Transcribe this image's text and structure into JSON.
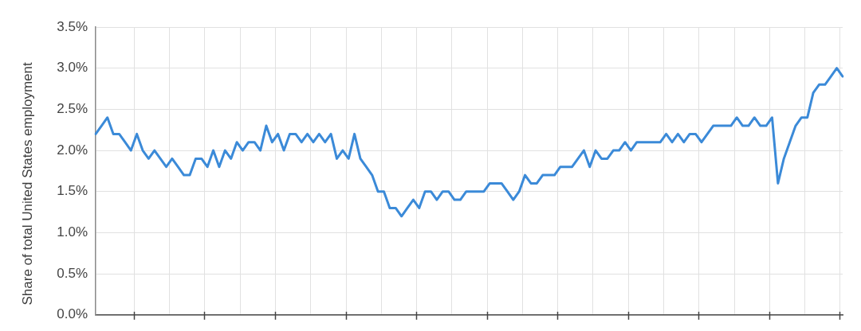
{
  "chart_data": {
    "type": "line",
    "ylabel": "Share of total United States employment",
    "categories": [
      null,
      null,
      null,
      null,
      null,
      null,
      null,
      null,
      null,
      null,
      null,
      null,
      null,
      null,
      null,
      null,
      null,
      null,
      null,
      null,
      null,
      null,
      null,
      null,
      null,
      null,
      null,
      null,
      null,
      null,
      null,
      null,
      null,
      null,
      null,
      null,
      null,
      null,
      null,
      null,
      null,
      null,
      null,
      null,
      null,
      null,
      null,
      null,
      null,
      null,
      null,
      null,
      null,
      null,
      null,
      null,
      null,
      null,
      null,
      null,
      null,
      null,
      null,
      null,
      null,
      null,
      null,
      null,
      null,
      null,
      null,
      null,
      null,
      null,
      null,
      null,
      null,
      null,
      null,
      null,
      null,
      null,
      null,
      null,
      null,
      null,
      null,
      null,
      null,
      null,
      null,
      null,
      null,
      null,
      null,
      null,
      null,
      null,
      null,
      null,
      null,
      null,
      null,
      null,
      null,
      null,
      null,
      null,
      null,
      null,
      null,
      null,
      null,
      null,
      null,
      null,
      null,
      null,
      null,
      null,
      null,
      null,
      null,
      null,
      null,
      null,
      null,
      null
    ],
    "values": [
      2.2,
      2.3,
      2.4,
      2.2,
      2.2,
      2.1,
      2.0,
      2.2,
      2.0,
      1.9,
      2.0,
      1.9,
      1.8,
      1.9,
      1.8,
      1.7,
      1.7,
      1.9,
      1.9,
      1.8,
      2.0,
      1.8,
      2.0,
      1.9,
      2.1,
      2.0,
      2.1,
      2.1,
      2.0,
      2.3,
      2.1,
      2.2,
      2.0,
      2.2,
      2.2,
      2.1,
      2.2,
      2.1,
      2.2,
      2.1,
      2.2,
      1.9,
      2.0,
      1.9,
      2.2,
      1.9,
      1.8,
      1.7,
      1.5,
      1.5,
      1.3,
      1.3,
      1.2,
      1.3,
      1.4,
      1.3,
      1.5,
      1.5,
      1.4,
      1.5,
      1.5,
      1.4,
      1.4,
      1.5,
      1.5,
      1.5,
      1.5,
      1.6,
      1.6,
      1.6,
      1.5,
      1.4,
      1.5,
      1.7,
      1.6,
      1.6,
      1.7,
      1.7,
      1.7,
      1.8,
      1.8,
      1.8,
      1.9,
      2.0,
      1.8,
      2.0,
      1.9,
      1.9,
      2.0,
      2.0,
      2.1,
      2.0,
      2.1,
      2.1,
      2.1,
      2.1,
      2.1,
      2.2,
      2.1,
      2.2,
      2.1,
      2.2,
      2.2,
      2.1,
      2.2,
      2.3,
      2.3,
      2.3,
      2.3,
      2.4,
      2.3,
      2.3,
      2.4,
      2.3,
      2.3,
      2.4,
      1.6,
      1.9,
      2.1,
      2.3,
      2.4,
      2.4,
      2.7,
      2.8,
      2.8,
      2.9,
      3.0,
      2.9
    ],
    "color": "#3b8ad8",
    "ylim": [
      0,
      3.5
    ],
    "yticks": [
      {
        "value": 0,
        "label": "0.0%"
      },
      {
        "value": 0.5,
        "label": "0.5%"
      },
      {
        "value": 1,
        "label": "1.0%"
      },
      {
        "value": 1.5,
        "label": "1.5%"
      },
      {
        "value": 2,
        "label": "2.0%"
      },
      {
        "value": 2.5,
        "label": "2.5%"
      },
      {
        "value": 3,
        "label": "3.0%"
      },
      {
        "value": 3.5,
        "label": "3.5%"
      }
    ],
    "grid": true,
    "tick_labels": "y",
    "marker": "none",
    "line_style": "solid"
  }
}
